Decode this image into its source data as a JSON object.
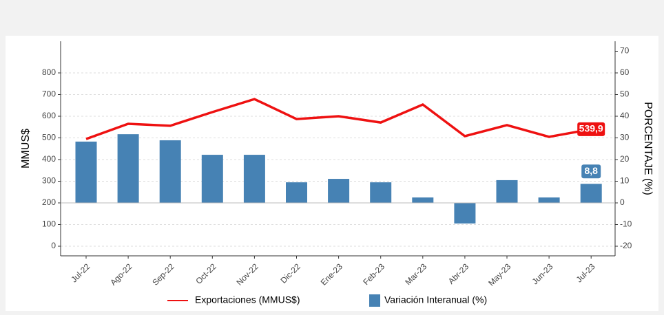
{
  "chart_data": {
    "type": "bar_line",
    "categories": [
      "Jul-22",
      "Ago-22",
      "Sep-22",
      "Oct-22",
      "Nov-22",
      "Dic-22",
      "Ene-23",
      "Feb-23",
      "Mar-23",
      "Abr-23",
      "May-23",
      "Jun-23",
      "Jul-23"
    ],
    "ylabel": "MMUS$",
    "y2label": "PORCENTAJE (%)",
    "ylim": [
      -44.4,
      946
    ],
    "yticks": [
      0,
      100,
      200,
      300,
      400,
      500,
      600,
      700,
      800
    ],
    "y2lim": [
      -24.44,
      74.6
    ],
    "y2ticks": [
      -20,
      -10,
      0,
      10,
      20,
      30,
      40,
      50,
      60,
      70
    ],
    "grid": true,
    "series": [
      {
        "name": "Exportaciones (MMUS$)",
        "type": "line",
        "color": "#ee1111",
        "axis": "y",
        "values": [
          495,
          565,
          556,
          619,
          679,
          587,
          600,
          571,
          654,
          508,
          559,
          505,
          539.9
        ],
        "value_labels": [
          null,
          null,
          null,
          null,
          null,
          null,
          null,
          null,
          null,
          null,
          null,
          null,
          "539,9"
        ]
      },
      {
        "name": "Variación Interanual (%)",
        "type": "bar",
        "color": "#4682b4",
        "axis": "y2",
        "values": [
          28.3,
          31.7,
          28.9,
          22.2,
          22.2,
          9.5,
          11.1,
          9.5,
          2.5,
          -9.5,
          10.5,
          2.5,
          8.8
        ],
        "value_labels": [
          null,
          null,
          null,
          null,
          null,
          null,
          null,
          null,
          null,
          null,
          null,
          null,
          "8,8"
        ]
      }
    ]
  }
}
